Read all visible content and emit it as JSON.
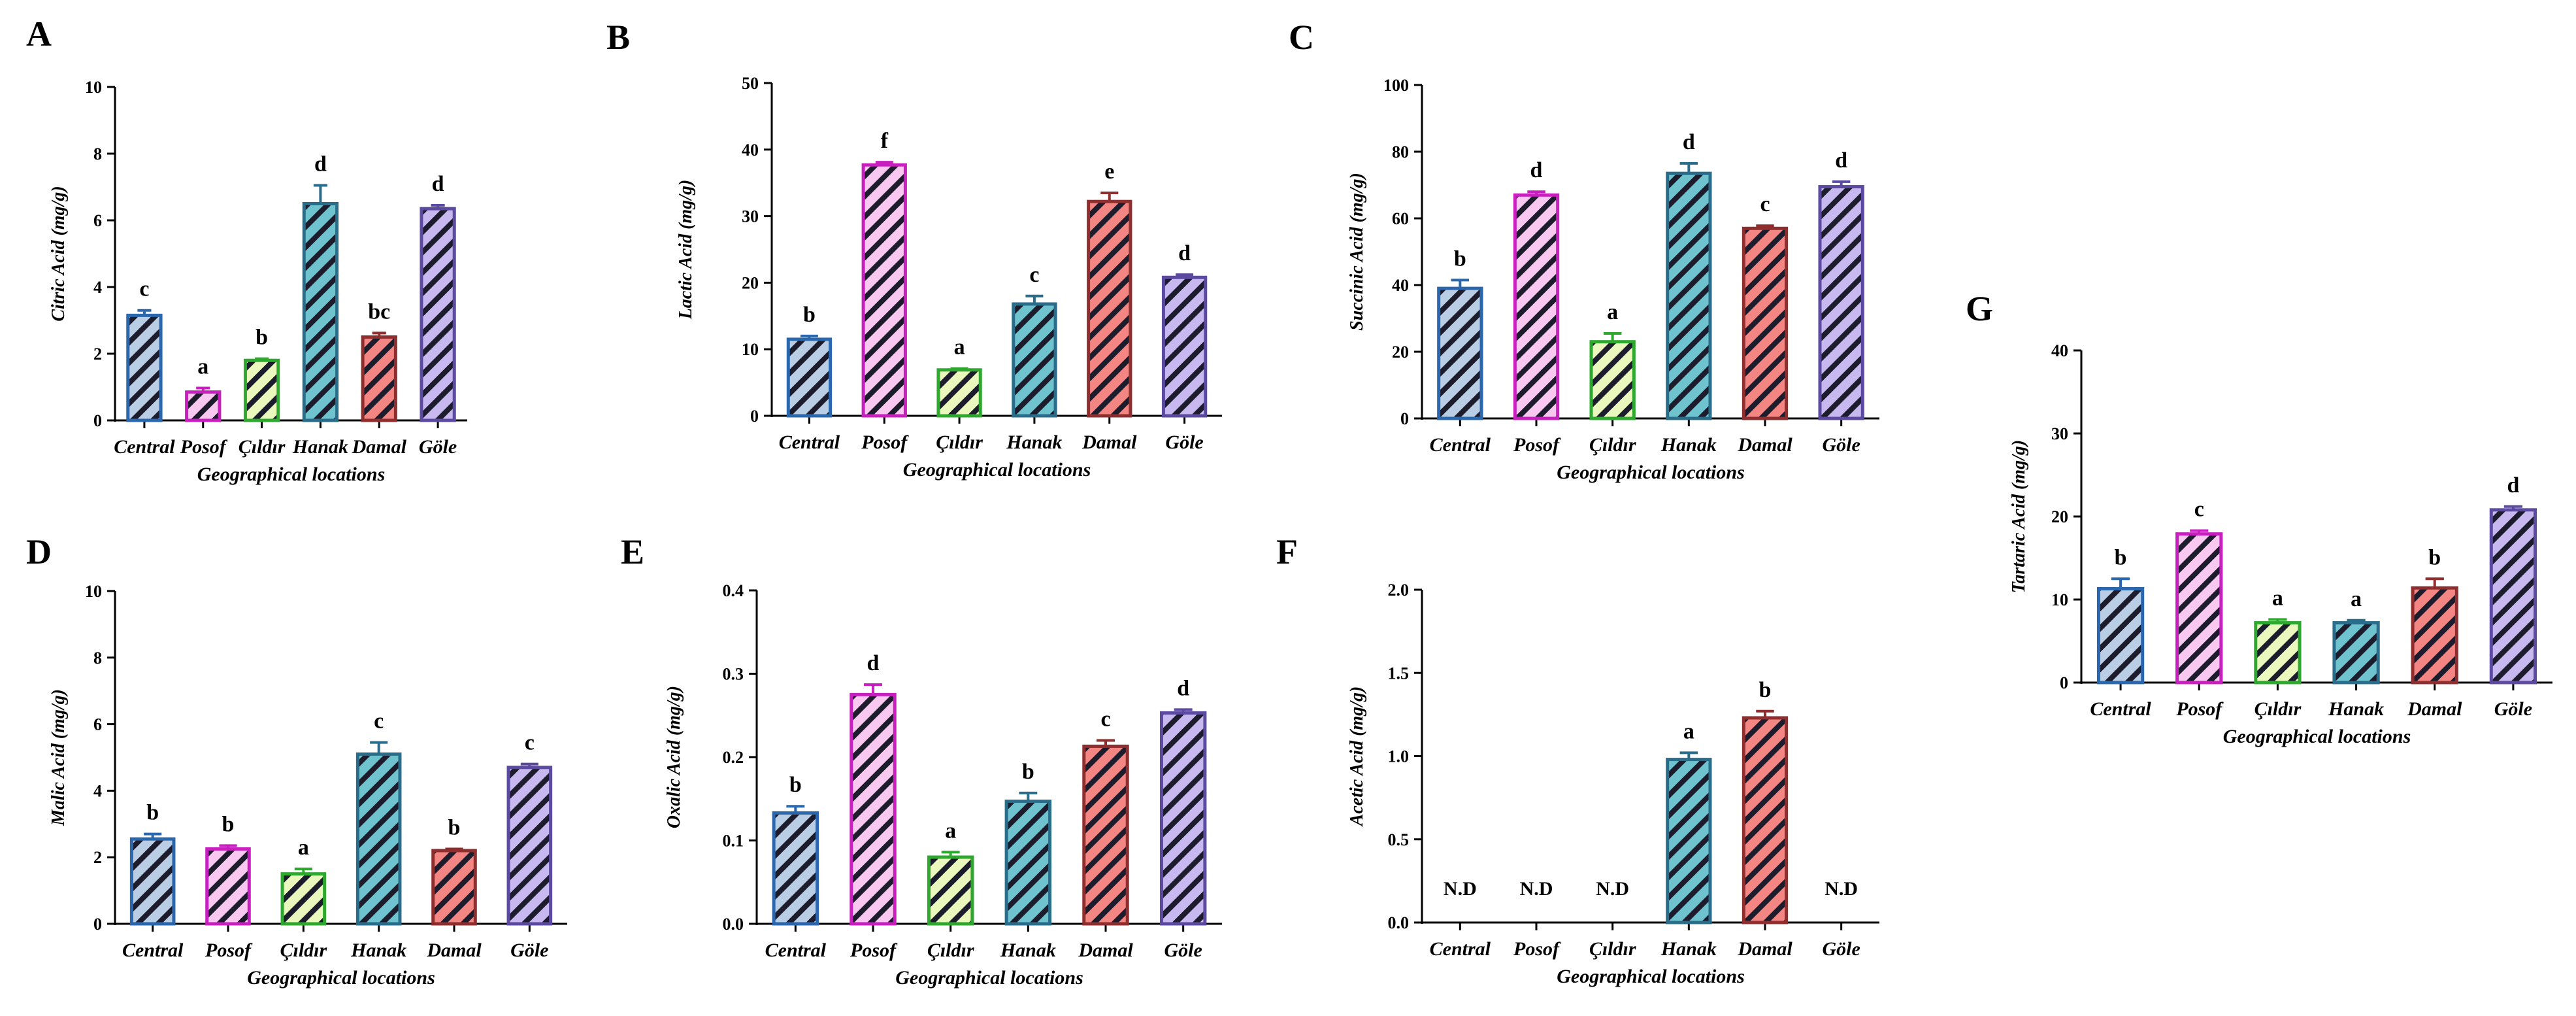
{
  "palette": {
    "fills": [
      "#b9cde5",
      "#f9c8f0",
      "#eaf7bd",
      "#6fc3cf",
      "#f38682",
      "#c7b8ef"
    ],
    "strokes": [
      "#2b67ad",
      "#c81fbf",
      "#2ea82e",
      "#2a6d8a",
      "#8e2e2e",
      "#5b4aa0"
    ],
    "hatch": "#1c1c2c"
  },
  "chart_data": [
    {
      "panel": "A",
      "type": "bar",
      "categories": [
        "Central",
        "Posof",
        "Çıldır",
        "Hanak",
        "Damal",
        "Göle"
      ],
      "values": [
        3.15,
        0.85,
        1.8,
        6.5,
        2.5,
        6.35
      ],
      "errors": [
        0.15,
        0.12,
        0.05,
        0.55,
        0.12,
        0.1
      ],
      "sig": [
        "c",
        "a",
        "b",
        "d",
        "bc",
        "d"
      ],
      "ylabel": "Citric Acid (mg/g)",
      "xlabel": "Geographical locations",
      "ylim": [
        0,
        10
      ],
      "yticks": [
        "0",
        "2",
        "4",
        "6",
        "8",
        "10"
      ]
    },
    {
      "panel": "B",
      "type": "bar",
      "categories": [
        "Central",
        "Posof",
        "Çıldır",
        "Hanak",
        "Damal",
        "Göle"
      ],
      "values": [
        11.5,
        37.7,
        6.9,
        16.8,
        32.2,
        20.8
      ],
      "errors": [
        0.5,
        0.4,
        0.2,
        1.2,
        1.3,
        0.4
      ],
      "sig": [
        "b",
        "f",
        "a",
        "c",
        "e",
        "d"
      ],
      "ylabel": "Lactic Acid (mg/g)",
      "xlabel": "Geographical locations",
      "ylim": [
        0,
        50
      ],
      "yticks": [
        "0",
        "10",
        "20",
        "30",
        "40",
        "50"
      ]
    },
    {
      "panel": "C",
      "type": "bar",
      "categories": [
        "Central",
        "Posof",
        "Çıldır",
        "Hanak",
        "Damal",
        "Göle"
      ],
      "values": [
        39,
        67,
        23,
        73.5,
        57,
        69.5
      ],
      "errors": [
        2.5,
        1,
        2.5,
        3,
        0.8,
        1.5
      ],
      "sig": [
        "b",
        "d",
        "a",
        "d",
        "c",
        "d"
      ],
      "ylabel": "Succinic Acid (mg/g)",
      "xlabel": "Geographical locations",
      "ylim": [
        0,
        100
      ],
      "yticks": [
        "0",
        "20",
        "40",
        "60",
        "80",
        "100"
      ]
    },
    {
      "panel": "D",
      "type": "bar",
      "categories": [
        "Central",
        "Posof",
        "Çıldır",
        "Hanak",
        "Damal",
        "Göle"
      ],
      "values": [
        2.55,
        2.25,
        1.5,
        5.1,
        2.2,
        4.7
      ],
      "errors": [
        0.15,
        0.1,
        0.15,
        0.35,
        0.05,
        0.1
      ],
      "sig": [
        "b",
        "b",
        "a",
        "c",
        "b",
        "c"
      ],
      "ylabel": "Malic Acid (mg/g)",
      "xlabel": "Geographical locations",
      "ylim": [
        0,
        10
      ],
      "yticks": [
        "0",
        "2",
        "4",
        "6",
        "8",
        "10"
      ]
    },
    {
      "panel": "E",
      "type": "bar",
      "categories": [
        "Central",
        "Posof",
        "Çıldır",
        "Hanak",
        "Damal",
        "Göle"
      ],
      "values": [
        0.133,
        0.275,
        0.08,
        0.147,
        0.213,
        0.253
      ],
      "errors": [
        0.008,
        0.012,
        0.006,
        0.01,
        0.007,
        0.004
      ],
      "sig": [
        "b",
        "d",
        "a",
        "b",
        "c",
        "d"
      ],
      "ylabel": "Oxalic Acid (mg/g)",
      "xlabel": "Geographical locations",
      "ylim": [
        0,
        0.4
      ],
      "yticks": [
        "0.0",
        "0.1",
        "0.2",
        "0.3",
        "0.4"
      ]
    },
    {
      "panel": "F",
      "type": "bar",
      "categories": [
        "Central",
        "Posof",
        "Çıldır",
        "Hanak",
        "Damal",
        "Göle"
      ],
      "values": [
        null,
        null,
        null,
        0.98,
        1.23,
        null
      ],
      "errors": [
        null,
        null,
        null,
        0.04,
        0.04,
        null
      ],
      "sig": [
        "",
        "",
        "",
        "a",
        "b",
        ""
      ],
      "not_detected_label": "N.D",
      "ylabel": "Acetic Acid (mg/g)",
      "xlabel": "Geographical locations",
      "ylim": [
        0,
        2
      ],
      "yticks": [
        "0.0",
        "0.5",
        "1.0",
        "1.5",
        "2.0"
      ]
    },
    {
      "panel": "G",
      "type": "bar",
      "categories": [
        "Central",
        "Posof",
        "Çıldır",
        "Hanak",
        "Damal",
        "Göle"
      ],
      "values": [
        11.3,
        17.9,
        7.2,
        7.2,
        11.4,
        20.8
      ],
      "errors": [
        1.2,
        0.4,
        0.4,
        0.3,
        1.1,
        0.4
      ],
      "sig": [
        "b",
        "c",
        "a",
        "a",
        "b",
        "d"
      ],
      "ylabel": "Tartaric Acid (mg/g)",
      "xlabel": "Geographical locations",
      "ylim": [
        0,
        40
      ],
      "yticks": [
        "0",
        "10",
        "20",
        "30",
        "40"
      ]
    }
  ]
}
